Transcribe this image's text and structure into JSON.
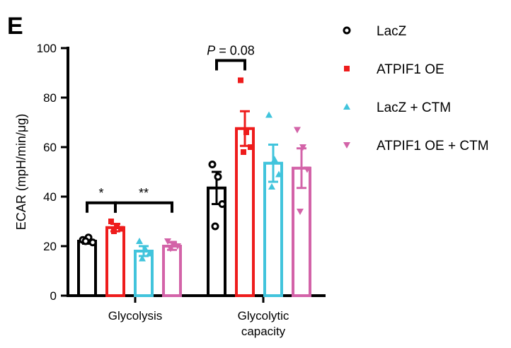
{
  "panel_label": "E",
  "chart_data": {
    "type": "bar",
    "ylabel": "ECAR (mpH/min/μg)",
    "xlabel": "",
    "ylim": [
      0,
      100
    ],
    "yticks": [
      0,
      20,
      40,
      60,
      80,
      100
    ],
    "categories": [
      "Glycolysis",
      "Glycolytic\ncapacity"
    ],
    "category_lines": [
      [
        "Glycolysis"
      ],
      [
        "Glycolytic",
        "capacity"
      ]
    ],
    "legend_position": "right",
    "series": [
      {
        "name": "LacZ",
        "color": "#000000",
        "marker": "open-circle",
        "values": [
          22,
          43.5
        ],
        "errors": [
          1.0,
          6.5
        ],
        "points": [
          [
            22.5,
            23.5,
            21.5,
            22
          ],
          [
            53,
            48,
            37,
            28
          ]
        ]
      },
      {
        "name": "ATPIF1 OE",
        "color": "#ee1c1c",
        "marker": "square",
        "values": [
          27.5,
          67.5
        ],
        "errors": [
          1.5,
          7
        ],
        "points": [
          [
            30,
            28,
            27,
            26
          ],
          [
            87,
            66,
            60,
            58
          ]
        ]
      },
      {
        "name": "LacZ + CTM",
        "color": "#41c4dc",
        "marker": "triangle-up",
        "values": [
          18,
          53.5
        ],
        "errors": [
          2,
          7.5
        ],
        "points": [
          [
            22,
            19,
            17,
            15
          ],
          [
            73,
            55,
            49,
            44
          ]
        ]
      },
      {
        "name": "ATPIF1 OE + CTM",
        "color": "#d363a8",
        "marker": "triangle-down",
        "values": [
          20,
          51.5
        ],
        "errors": [
          1.5,
          8
        ],
        "points": [
          [
            22,
            21,
            20,
            19
          ],
          [
            67,
            60,
            51,
            34
          ]
        ]
      }
    ],
    "annotations": [
      {
        "label": "*",
        "category": 0,
        "from_series": 0,
        "to_series": 1,
        "y": 37.5
      },
      {
        "label": "**",
        "category": 0,
        "from_series": 1,
        "to_series": 3,
        "y": 37.5
      },
      {
        "label_italic": "P",
        "label": " = 0.08",
        "category": 1,
        "from_series": 0,
        "to_series": 1,
        "y": 95
      }
    ]
  }
}
